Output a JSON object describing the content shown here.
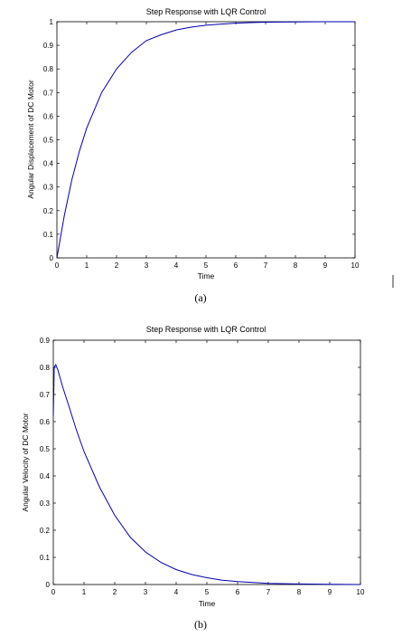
{
  "chart_data": [
    {
      "type": "line",
      "title": "Step Response with LQR Control",
      "xlabel": "Time",
      "ylabel": "Angular Displacement of DC Motor",
      "caption": "(a)",
      "xlim": [
        0,
        10
      ],
      "ylim": [
        0,
        1
      ],
      "xticks": [
        "0",
        "1",
        "2",
        "3",
        "4",
        "5",
        "6",
        "7",
        "8",
        "9",
        "10"
      ],
      "yticks": [
        "0",
        "0.1",
        "0.2",
        "0.3",
        "0.4",
        "0.5",
        "0.6",
        "0.7",
        "0.8",
        "0.9",
        "1"
      ],
      "grid": false,
      "line_color": "#0000b0",
      "series": [
        {
          "x": [
            0,
            0.25,
            0.5,
            0.75,
            1,
            1.5,
            2,
            2.5,
            3,
            3.5,
            4,
            4.5,
            5,
            5.5,
            6,
            6.5,
            7,
            8,
            9,
            10
          ],
          "values": [
            0,
            0.18,
            0.33,
            0.45,
            0.55,
            0.7,
            0.8,
            0.87,
            0.92,
            0.945,
            0.965,
            0.977,
            0.985,
            0.99,
            0.994,
            0.996,
            0.998,
            0.999,
            1.0,
            1.0
          ]
        }
      ]
    },
    {
      "type": "line",
      "title": "Step Response with LQR Control",
      "xlabel": "Time",
      "ylabel": "Angular Velocity of DC Motor",
      "caption": "(b)",
      "xlim": [
        0,
        10
      ],
      "ylim": [
        0,
        0.9
      ],
      "xticks": [
        "0",
        "1",
        "2",
        "3",
        "4",
        "5",
        "6",
        "7",
        "8",
        "9",
        "10"
      ],
      "yticks": [
        "0",
        "0.1",
        "0.2",
        "0.3",
        "0.4",
        "0.5",
        "0.6",
        "0.7",
        "0.8",
        "0.9"
      ],
      "grid": false,
      "line_color": "#0000b0",
      "series": [
        {
          "x": [
            0,
            0.03,
            0.08,
            0.15,
            0.3,
            0.5,
            0.75,
            1,
            1.5,
            2,
            2.5,
            3,
            3.5,
            4,
            4.5,
            5,
            5.5,
            6,
            7,
            8,
            9,
            10
          ],
          "values": [
            0.62,
            0.8,
            0.81,
            0.79,
            0.73,
            0.66,
            0.57,
            0.49,
            0.36,
            0.255,
            0.175,
            0.12,
            0.082,
            0.055,
            0.037,
            0.025,
            0.016,
            0.011,
            0.004,
            0.002,
            0.001,
            0.0
          ]
        }
      ]
    }
  ]
}
